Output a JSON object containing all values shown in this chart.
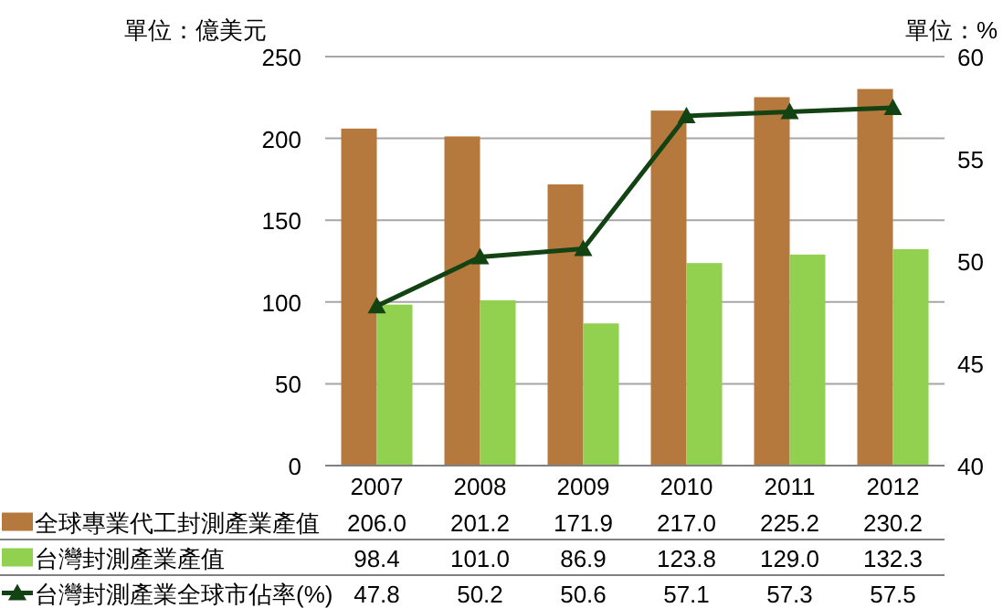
{
  "chart_data": {
    "type": "bar",
    "ylabel": "單位：億美元",
    "y2label": "單位：%",
    "categories": [
      "2007",
      "2008",
      "2009",
      "2010",
      "2011",
      "2012"
    ],
    "series": [
      {
        "name": "全球專業代工封測產業產值",
        "color": "#b5793e",
        "values": [
          206.0,
          201.2,
          171.9,
          217.0,
          225.2,
          230.2
        ],
        "value_labels": [
          "206.0",
          "201.2",
          "171.9",
          "217.0",
          "225.2",
          "230.2"
        ]
      },
      {
        "name": "台灣封測產業產值",
        "color": "#92d050",
        "values": [
          98.4,
          101.0,
          86.9,
          123.8,
          129.0,
          132.3
        ],
        "value_labels": [
          "98.4",
          "101.0",
          "86.9",
          "123.8",
          "129.0",
          "132.3"
        ]
      },
      {
        "name": "台灣封測產業全球市佔率(%)",
        "type": "line",
        "axis": "y2",
        "marker": "triangle",
        "color": "#134313",
        "values": [
          47.8,
          50.2,
          50.6,
          57.1,
          57.3,
          57.5
        ],
        "value_labels": [
          "47.8",
          "50.2",
          "50.6",
          "57.1",
          "57.3",
          "57.5"
        ]
      }
    ],
    "ylim": [
      0,
      250
    ],
    "yticks": [
      0,
      50,
      100,
      150,
      200,
      250
    ],
    "y2lim": [
      40,
      60
    ],
    "y2ticks": [
      40,
      45,
      50,
      55,
      60
    ],
    "grid": "y",
    "legend": "bottom"
  }
}
